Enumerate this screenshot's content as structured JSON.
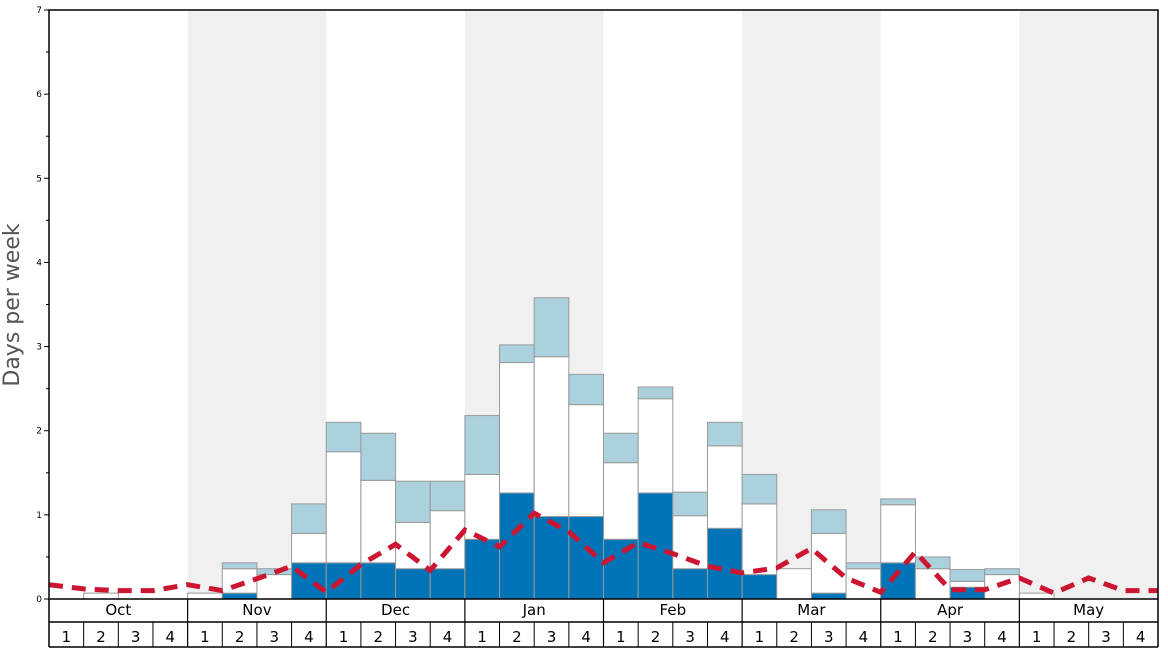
{
  "chart_data": {
    "type": "bar",
    "ylabel": "Days per week",
    "ylim": [
      0,
      7
    ],
    "yticks": [
      "0",
      "1",
      "2",
      "3",
      "4",
      "5",
      "6",
      "7"
    ],
    "months": [
      "Oct",
      "Nov",
      "Dec",
      "Jan",
      "Feb",
      "Mar",
      "Apr",
      "May"
    ],
    "weeks": [
      "1",
      "2",
      "3",
      "4"
    ],
    "colors": {
      "band_shaded": "#f0f0f0",
      "dark": "#0173b7",
      "white": "#ffffff",
      "light": "#abd1de",
      "bar_edge": "#999999",
      "dashed_line": "#cc1530",
      "axis": "#000000"
    },
    "series": [
      {
        "name": "dark blue",
        "values": [
          0,
          0,
          0,
          0,
          0,
          0.07,
          0,
          0.43,
          0.43,
          0.43,
          0.36,
          0.36,
          0.71,
          1.26,
          0.98,
          0.98,
          0.71,
          1.26,
          0.36,
          0.84,
          0.29,
          0,
          0.07,
          0,
          0.43,
          0,
          0.14,
          0,
          0,
          0,
          0,
          0
        ]
      },
      {
        "name": "white",
        "values": [
          0,
          0.07,
          0,
          0,
          0.07,
          0.29,
          0.29,
          0.35,
          1.32,
          0.98,
          0.55,
          0.69,
          0.77,
          1.55,
          1.9,
          1.33,
          0.91,
          1.12,
          0.63,
          0.98,
          0.84,
          0.36,
          0.71,
          0.36,
          0.69,
          0.36,
          0.07,
          0.29,
          0.07,
          0,
          0,
          0
        ]
      },
      {
        "name": "light blue",
        "values": [
          0,
          0,
          0,
          0,
          0,
          0.07,
          0.07,
          0.35,
          0.35,
          0.56,
          0.49,
          0.35,
          0.7,
          0.21,
          0.7,
          0.36,
          0.35,
          0.14,
          0.28,
          0.28,
          0.35,
          0,
          0.28,
          0.07,
          0.07,
          0.14,
          0.14,
          0.07,
          0,
          0,
          0,
          0
        ]
      },
      {
        "name": "dashed",
        "values": [
          0.17,
          0.12,
          0.1,
          0.1,
          0.17,
          0.1,
          0.24,
          0.39,
          0.08,
          0.41,
          0.65,
          0.34,
          0.82,
          0.62,
          1.02,
          0.8,
          0.43,
          0.67,
          0.54,
          0.39,
          0.31,
          0.37,
          0.6,
          0.25,
          0.08,
          0.56,
          0.11,
          0.11,
          0.25,
          0.07,
          0.25,
          0.1,
          0.1
        ]
      }
    ]
  }
}
